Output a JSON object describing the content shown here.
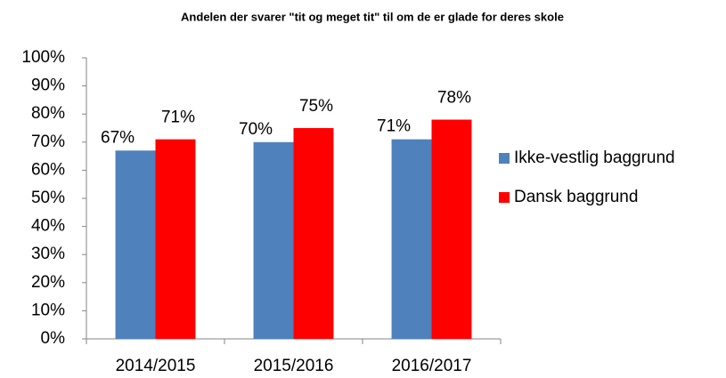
{
  "chart_data": {
    "type": "bar",
    "title": "Andelen der svarer \"tit og meget tit\" til om de er glade for deres skole",
    "categories": [
      "2014/2015",
      "2015/2016",
      "2016/2017"
    ],
    "series": [
      {
        "name": "Ikke-vestlig baggrund",
        "color": "#4f81bd",
        "values": [
          67,
          70,
          71
        ],
        "value_labels": [
          "67%",
          "70%",
          "71%"
        ]
      },
      {
        "name": "Dansk baggrund",
        "color": "#ff0000",
        "values": [
          71,
          75,
          78
        ],
        "value_labels": [
          "71%",
          "75%",
          "78%"
        ]
      }
    ],
    "ylim": [
      0,
      100
    ],
    "yticks": [
      {
        "value": 0,
        "label": "0%"
      },
      {
        "value": 10,
        "label": "10%"
      },
      {
        "value": 20,
        "label": "20%"
      },
      {
        "value": 30,
        "label": "30%"
      },
      {
        "value": 40,
        "label": "40%"
      },
      {
        "value": 50,
        "label": "50%"
      },
      {
        "value": 60,
        "label": "60%"
      },
      {
        "value": 70,
        "label": "70%"
      },
      {
        "value": 80,
        "label": "80%"
      },
      {
        "value": 90,
        "label": "90%"
      },
      {
        "value": 100,
        "label": "100%"
      }
    ],
    "grid": false,
    "legend": "right"
  }
}
